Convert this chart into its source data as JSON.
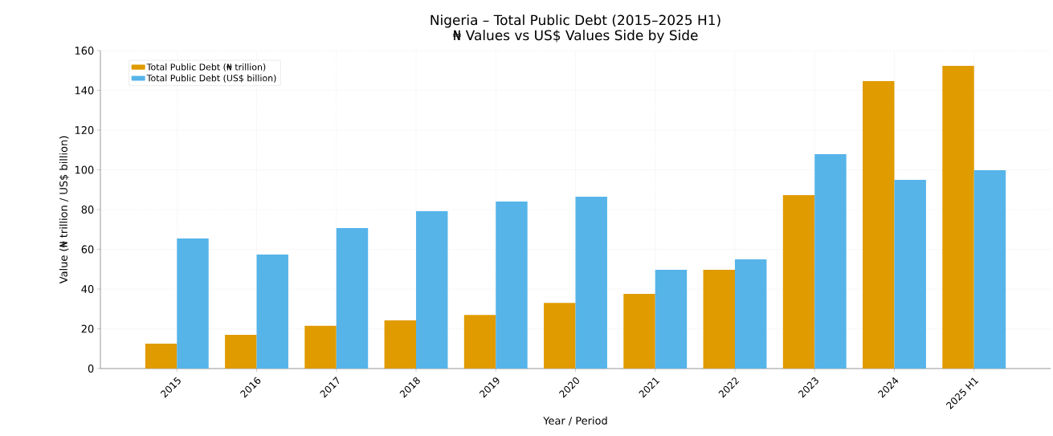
{
  "chart_data": {
    "type": "bar",
    "title": "Nigeria – Total Public Debt (2015–2025 H1)",
    "subtitle": "₦ Values vs US$ Values Side by Side",
    "xlabel": "Year / Period",
    "ylabel": "Value (₦ trillion / US$ billion)",
    "categories": [
      "2015",
      "2016",
      "2017",
      "2018",
      "2019",
      "2020",
      "2021",
      "2022",
      "2023",
      "2024",
      "2025 H1"
    ],
    "series": [
      {
        "name": "Total Public Debt (₦ trillion)",
        "color": "#e09b00",
        "values": [
          12.5,
          17,
          21.5,
          24.2,
          27,
          33,
          37.6,
          49.7,
          87.3,
          144.6,
          152.3
        ]
      },
      {
        "name": "Total Public Debt (US$ billion)",
        "color": "#56b4e9",
        "values": [
          65.5,
          57.4,
          70.7,
          79.2,
          84,
          86.5,
          49.7,
          55,
          107.9,
          95,
          99.8
        ]
      }
    ],
    "ylim": [
      0,
      160
    ],
    "yticks": [
      0,
      20,
      40,
      60,
      80,
      100,
      120,
      140,
      160
    ],
    "grid": true,
    "legend": "top left"
  }
}
